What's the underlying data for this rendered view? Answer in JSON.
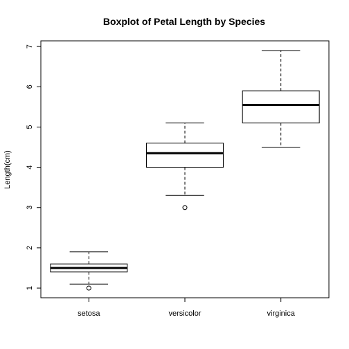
{
  "chart_data": {
    "type": "box",
    "title": "Boxplot of Petal Length by Species",
    "xlabel": "",
    "ylabel": "Length(cm)",
    "ylim": [
      0.76,
      7.14
    ],
    "yticks": [
      1,
      2,
      3,
      4,
      5,
      6,
      7
    ],
    "ytick_labels": [
      "1",
      "2",
      "3",
      "4",
      "5",
      "6",
      "7"
    ],
    "categories": [
      "setosa",
      "versicolor",
      "virginica"
    ],
    "boxes": [
      {
        "category": "setosa",
        "whisker_low": 1.1,
        "q1": 1.4,
        "median": 1.5,
        "q3": 1.6,
        "whisker_high": 1.9,
        "outliers": [
          1.0
        ]
      },
      {
        "category": "versicolor",
        "whisker_low": 3.3,
        "q1": 4.0,
        "median": 4.35,
        "q3": 4.6,
        "whisker_high": 5.1,
        "outliers": [
          3.0
        ]
      },
      {
        "category": "virginica",
        "whisker_low": 4.5,
        "q1": 5.1,
        "median": 5.55,
        "q3": 5.9,
        "whisker_high": 6.9,
        "outliers": []
      }
    ],
    "grid": false
  }
}
